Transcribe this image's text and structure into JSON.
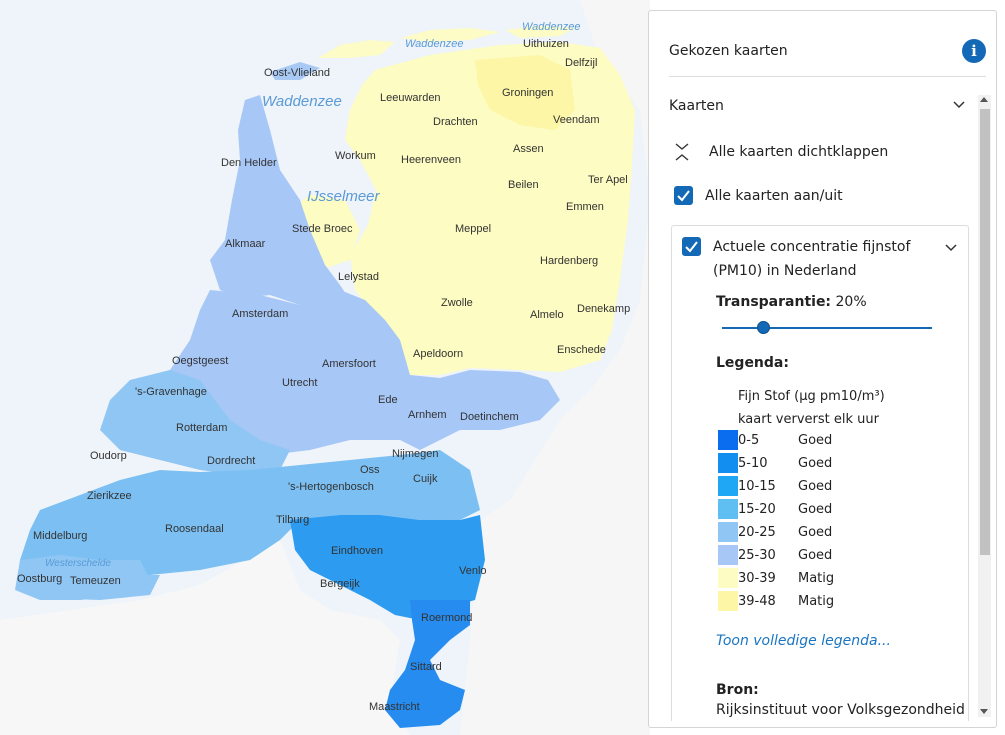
{
  "map": {
    "water_labels": [
      {
        "name": "Waddenzee",
        "size": 15
      },
      {
        "name": "Waddenzee",
        "size": 11
      },
      {
        "name": "Waddenzee",
        "size": 11
      },
      {
        "name": "IJsselmeer",
        "size": 15
      },
      {
        "name": "Westerschelde",
        "size": 10
      }
    ],
    "cities": [
      "Oost-Vlieland",
      "Leeuwarden",
      "Groningen",
      "Uithuizen",
      "Delfzijl",
      "Drachten",
      "Veendam",
      "Den Helder",
      "Workum",
      "Heerenveen",
      "Assen",
      "Ter Apel",
      "Beilen",
      "Emmen",
      "Alkmaar",
      "Stede Broec",
      "Meppel",
      "Lelystad",
      "Zwolle",
      "Hardenberg",
      "Amsterdam",
      "Almelo",
      "Denekamp",
      "Enschede",
      "Apeldoorn",
      "Oegstgeest",
      "Amersfoort",
      "'s-Gravenhage",
      "Utrecht",
      "Ede",
      "Arnhem",
      "Doetinchem",
      "Rotterdam",
      "Oudorp",
      "Dordrecht",
      "Nijmegen",
      "Oss",
      "Cuijk",
      "'s-Hertogenbosch",
      "Zierikzee",
      "Roosendaal",
      "Tilburg",
      "Middelburg",
      "Eindhoven",
      "Venlo",
      "Oostburg",
      "Temeuzen",
      "Bergeijk",
      "Roermond",
      "Sittard",
      "Maastricht"
    ]
  },
  "panel": {
    "title": "Gekozen kaarten",
    "info_icon": "info-icon",
    "section_label": "Kaarten",
    "collapse_all_label": "Alle kaarten dichtklappen",
    "toggle_all_label": "Alle kaarten aan/uit",
    "toggle_all_checked": true,
    "layer": {
      "checked": true,
      "title": "Actuele concentratie fijnstof (PM10) in Nederland",
      "transparency_label": "Transparantie:",
      "transparency_value": "20%",
      "transparency_fraction": 0.2,
      "legend_heading": "Legenda:",
      "legend_subtitle": "Fijn Stof (µg pm10/m³)",
      "legend_note": "kaart ververst elk uur",
      "legend_items": [
        {
          "range": "0-5",
          "quality": "Goed",
          "color": "#0a6df0"
        },
        {
          "range": "5-10",
          "quality": "Goed",
          "color": "#128ef0"
        },
        {
          "range": "10-15",
          "quality": "Goed",
          "color": "#1fa6f4"
        },
        {
          "range": "15-20",
          "quality": "Goed",
          "color": "#5fbff2"
        },
        {
          "range": "20-25",
          "quality": "Goed",
          "color": "#8fc6f4"
        },
        {
          "range": "25-30",
          "quality": "Goed",
          "color": "#a7c7f7"
        },
        {
          "range": "30-39",
          "quality": "Matig",
          "color": "#fdfcc2"
        },
        {
          "range": "39-48",
          "quality": "Matig",
          "color": "#fcf6a6"
        }
      ],
      "full_legend_link": "Toon volledige legenda...",
      "source_label": "Bron:",
      "source_value": "Rijksinstituut voor Volksgezondheid"
    }
  }
}
